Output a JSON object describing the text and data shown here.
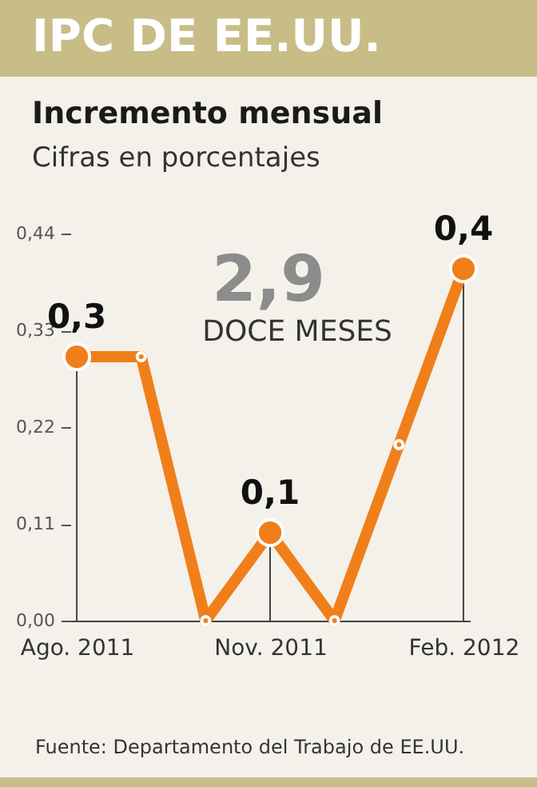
{
  "chart_data": {
    "type": "line",
    "title": "IPC DE EE.UU.",
    "subtitle": "Incremento mensual",
    "ylabel": "Cifras en porcentajes",
    "categories": [
      "Ago. 2011",
      null,
      null,
      "Nov. 2011",
      null,
      null,
      "Feb. 2012"
    ],
    "series": [
      {
        "color": "#f07f1a",
        "values": [
          0.3,
          0.3,
          0.0,
          0.1,
          0.0,
          0.2,
          0.4
        ]
      }
    ],
    "value_labels": [
      "0,3",
      null,
      null,
      "0,1",
      null,
      null,
      "0,4"
    ],
    "ylim": [
      0,
      0.44
    ],
    "yticks": [
      {
        "value": 0,
        "label": "0,00"
      },
      {
        "value": 0.11,
        "label": "0,11"
      },
      {
        "value": 0.22,
        "label": "0,22"
      },
      {
        "value": 0.33,
        "label": "0,33"
      },
      {
        "value": 0.44,
        "label": "0,44"
      }
    ],
    "grid": "x",
    "marker": "circle",
    "line_style": "solid",
    "annotations": [
      "2,9",
      "DOCE MESES",
      "Fuente: Departamento del Trabajo de EE.UU."
    ]
  }
}
